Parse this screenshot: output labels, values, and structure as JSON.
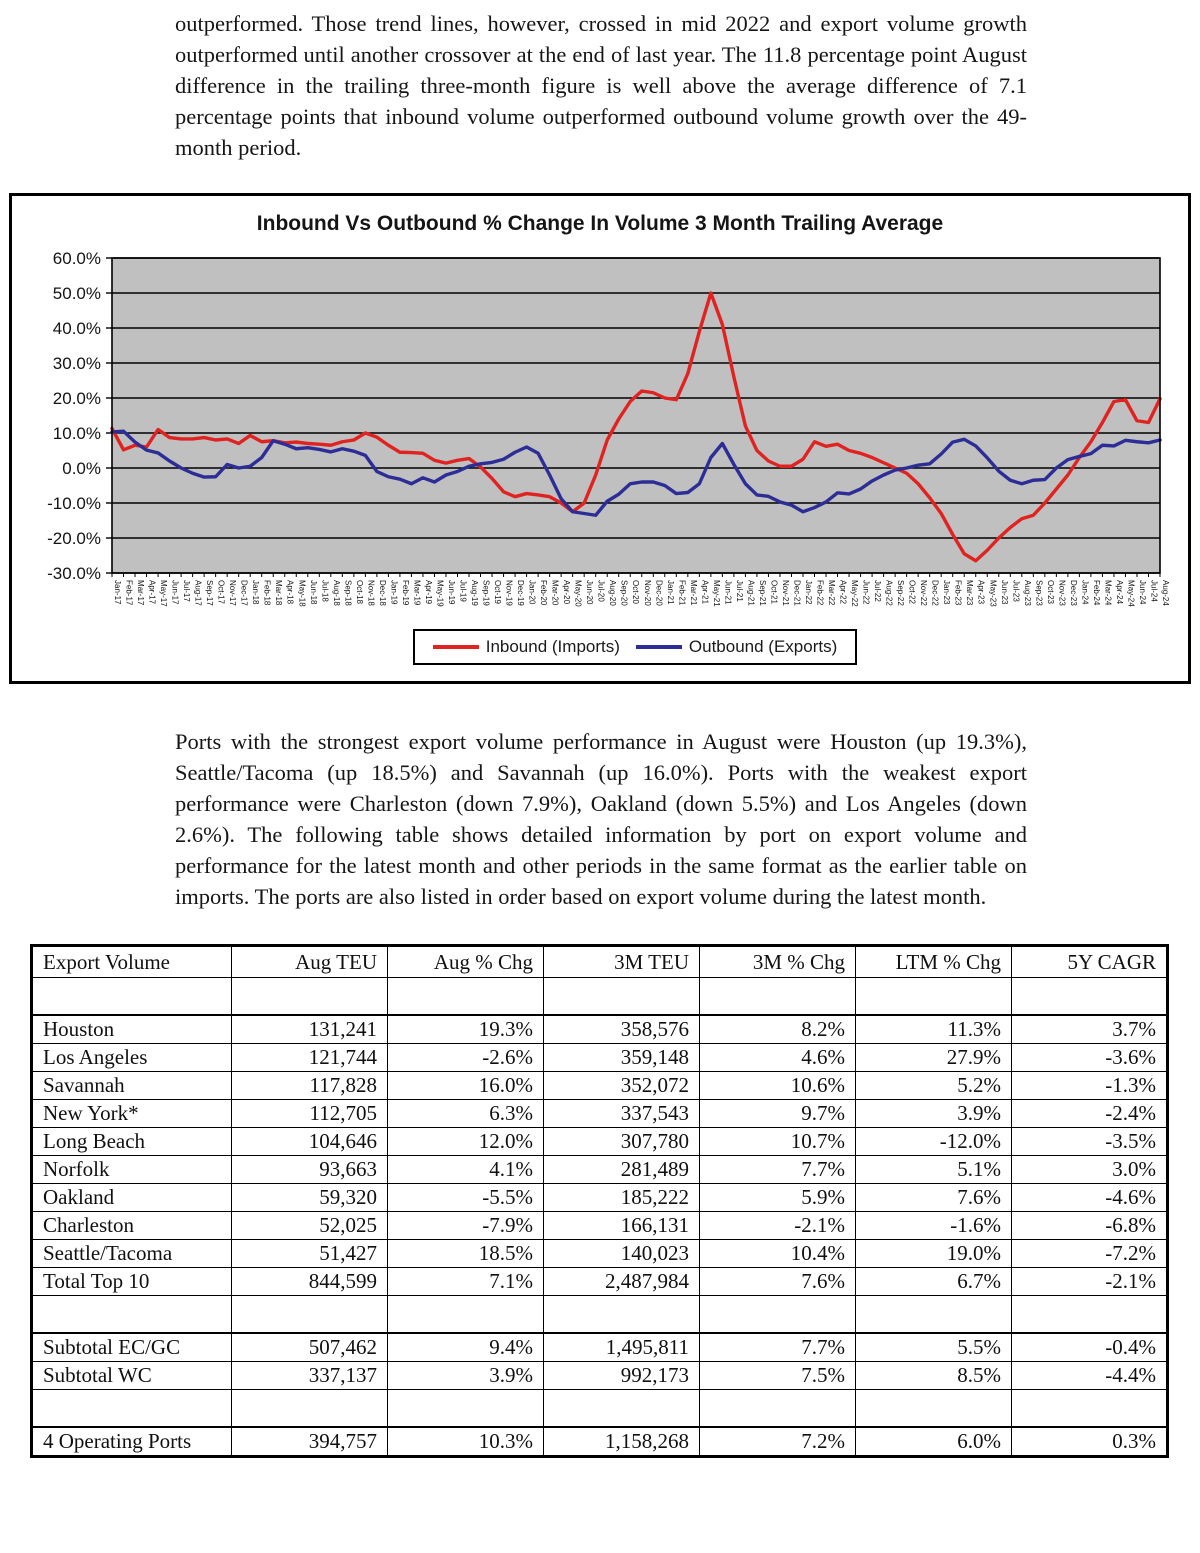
{
  "page": {
    "paragraph1": "outperformed.  Those trend lines, however, crossed in mid 2022 and export volume growth outperformed until another crossover at the end of last year.  The 11.8 percentage point August difference in the trailing three-month figure is well above the average difference of 7.1 percentage points that inbound volume outperformed outbound volume growth over the 49-month period.",
    "paragraph2": "Ports with the strongest export volume performance in August were Houston (up 19.3%), Seattle/Tacoma (up 18.5%) and Savannah (up 16.0%).  Ports with the weakest export performance were Charleston (down 7.9%), Oakland (down 5.5%) and Los Angeles (down 2.6%).  The following table shows detailed information by port on export volume and performance for the latest month and other periods in the same format as the earlier table on imports.  The ports are also listed in order based on export volume during the latest month."
  },
  "chart_data": {
    "type": "line",
    "title": "Inbound Vs Outbound % Change In Volume 3 Month Trailing Average",
    "xlabel": "",
    "ylabel": "",
    "ylim": [
      -30,
      60
    ],
    "y_ticks": [
      "60.0%",
      "50.0%",
      "40.0%",
      "30.0%",
      "20.0%",
      "10.0%",
      "0.0%",
      "-10.0%",
      "-20.0%",
      "-30.0%"
    ],
    "grid": true,
    "plot_bg": "#c0c0c0",
    "legend_position": "bottom",
    "x_labels": [
      "Jan-17",
      "Feb-17",
      "Mar-17",
      "Apr-17",
      "May-17",
      "Jun-17",
      "Jul-17",
      "Aug-17",
      "Sep-17",
      "Oct-17",
      "Nov-17",
      "Dec-17",
      "Jan-18",
      "Feb-18",
      "Mar-18",
      "Apr-18",
      "May-18",
      "Jun-18",
      "Jul-18",
      "Aug-18",
      "Sep-18",
      "Oct-18",
      "Nov-18",
      "Dec-18",
      "Jan-19",
      "Feb-19",
      "Mar-19",
      "Apr-19",
      "May-19",
      "Jun-19",
      "Jul-19",
      "Aug-19",
      "Sep-19",
      "Oct-19",
      "Nov-19",
      "Dec-19",
      "Jan-20",
      "Feb-20",
      "Mar-20",
      "Apr-20",
      "May-20",
      "Jun-20",
      "Jul-20",
      "Aug-20",
      "Sep-20",
      "Oct-20",
      "Nov-20",
      "Dec-20",
      "Jan-21",
      "Feb-21",
      "Mar-21",
      "Apr-21",
      "May-21",
      "Jun-21",
      "Jul-21",
      "Aug-21",
      "Sep-21",
      "Oct-21",
      "Nov-21",
      "Dec-21",
      "Jan-22",
      "Feb-22",
      "Mar-22",
      "Apr-22",
      "May-22",
      "Jun-22",
      "Jul-22",
      "Aug-22",
      "Sep-22",
      "Oct-22",
      "Nov-22",
      "Dec-22",
      "Jan-23",
      "Feb-23",
      "Mar-23",
      "Apr-23",
      "May-23",
      "Jun-23",
      "Jul-23",
      "Aug-23",
      "Sep-23",
      "Oct-23",
      "Nov-23",
      "Dec-23",
      "Jan-24",
      "Feb-24",
      "Mar-24",
      "Apr-24",
      "May-24",
      "Jun-24",
      "Jul-24",
      "Aug-24"
    ],
    "series": [
      {
        "name": "Inbound (Imports)",
        "color": "#e02320",
        "values": [
          11.3,
          5.2,
          6.5,
          6.0,
          11.0,
          8.7,
          8.3,
          8.3,
          8.7,
          8.0,
          8.3,
          7.0,
          9.3,
          7.5,
          7.8,
          7.2,
          7.4,
          7.0,
          6.8,
          6.5,
          7.5,
          8.0,
          10.0,
          8.8,
          6.5,
          4.5,
          4.4,
          4.2,
          2.2,
          1.4,
          2.2,
          2.7,
          0.3,
          -3.0,
          -6.8,
          -8.2,
          -7.3,
          -7.7,
          -8.2,
          -10.0,
          -12.5,
          -10.0,
          -2.0,
          8.0,
          14.0,
          19.0,
          22.0,
          21.5,
          20.0,
          19.5,
          27.0,
          39.0,
          50.0,
          41.0,
          26.0,
          12.0,
          5.0,
          2.0,
          0.5,
          0.5,
          2.5,
          7.5,
          6.2,
          6.8,
          5.0,
          4.2,
          3.0,
          1.5,
          0.0,
          -1.5,
          -4.5,
          -8.5,
          -13.0,
          -19.0,
          -24.5,
          -26.5,
          -23.5,
          -20.0,
          -17.0,
          -14.5,
          -13.5,
          -10.0,
          -6.0,
          -2.0,
          3.0,
          7.5,
          13.0,
          19.0,
          19.5,
          13.5,
          13.0,
          19.8
        ]
      },
      {
        "name": "Outbound (Exports)",
        "color": "#2c2d96",
        "values": [
          10.3,
          10.5,
          7.4,
          5.1,
          4.3,
          2.0,
          0.0,
          -1.5,
          -2.6,
          -2.5,
          1.0,
          0.0,
          0.5,
          3.0,
          7.8,
          6.8,
          5.5,
          5.8,
          5.3,
          4.6,
          5.5,
          4.8,
          3.6,
          -1.0,
          -2.5,
          -3.2,
          -4.5,
          -2.8,
          -4.0,
          -2.0,
          -1.0,
          0.5,
          1.2,
          1.6,
          2.5,
          4.5,
          6.0,
          4.2,
          -2.0,
          -8.8,
          -12.5,
          -13.0,
          -13.5,
          -9.5,
          -7.5,
          -4.5,
          -4.0,
          -4.0,
          -5.0,
          -7.3,
          -7.0,
          -4.5,
          3.0,
          7.0,
          1.0,
          -4.5,
          -7.7,
          -8.1,
          -9.7,
          -10.6,
          -12.5,
          -11.3,
          -9.7,
          -7.1,
          -7.4,
          -6.0,
          -3.7,
          -2.0,
          -0.6,
          0.0,
          0.8,
          1.2,
          4.0,
          7.4,
          8.2,
          6.3,
          2.9,
          -0.9,
          -3.5,
          -4.5,
          -3.5,
          -3.3,
          0.0,
          2.4,
          3.3,
          4.1,
          6.5,
          6.3,
          7.9,
          7.5,
          7.2,
          8.0
        ]
      }
    ]
  },
  "table": {
    "headers": [
      "Export Volume",
      "Aug TEU",
      "Aug % Chg",
      "3M TEU",
      "3M % Chg",
      "LTM % Chg",
      "5Y CAGR"
    ],
    "rows": [
      {
        "spacer": true
      },
      {
        "cells": [
          "Houston",
          "131,241",
          "19.3%",
          "358,576",
          "8.2%",
          "11.3%",
          "3.7%"
        ]
      },
      {
        "cells": [
          "Los Angeles",
          "121,744",
          "-2.6%",
          "359,148",
          "4.6%",
          "27.9%",
          "-3.6%"
        ]
      },
      {
        "cells": [
          "Savannah",
          "117,828",
          "16.0%",
          "352,072",
          "10.6%",
          "5.2%",
          "-1.3%"
        ]
      },
      {
        "cells": [
          "New York*",
          "112,705",
          "6.3%",
          "337,543",
          "9.7%",
          "3.9%",
          "-2.4%"
        ]
      },
      {
        "cells": [
          "Long Beach",
          "104,646",
          "12.0%",
          "307,780",
          "10.7%",
          "-12.0%",
          "-3.5%"
        ]
      },
      {
        "cells": [
          "Norfolk",
          "93,663",
          "4.1%",
          "281,489",
          "7.7%",
          "5.1%",
          "3.0%"
        ]
      },
      {
        "cells": [
          "Oakland",
          "59,320",
          "-5.5%",
          "185,222",
          "5.9%",
          "7.6%",
          "-4.6%"
        ]
      },
      {
        "cells": [
          "Charleston",
          "52,025",
          "-7.9%",
          "166,131",
          "-2.1%",
          "-1.6%",
          "-6.8%"
        ]
      },
      {
        "cells": [
          "Seattle/Tacoma",
          "51,427",
          "18.5%",
          "140,023",
          "10.4%",
          "19.0%",
          "-7.2%"
        ]
      },
      {
        "cells": [
          "Total Top 10",
          "844,599",
          "7.1%",
          "2,487,984",
          "7.6%",
          "6.7%",
          "-2.1%"
        ]
      },
      {
        "spacer": true
      },
      {
        "cells": [
          "Subtotal EC/GC",
          "507,462",
          "9.4%",
          "1,495,811",
          "7.7%",
          "5.5%",
          "-0.4%"
        ]
      },
      {
        "cells": [
          "Subtotal WC",
          "337,137",
          "3.9%",
          "992,173",
          "7.5%",
          "8.5%",
          "-4.4%"
        ]
      },
      {
        "spacer": true
      },
      {
        "cells": [
          "4 Operating Ports",
          "394,757",
          "10.3%",
          "1,158,268",
          "7.2%",
          "6.0%",
          "0.3%"
        ]
      }
    ]
  }
}
